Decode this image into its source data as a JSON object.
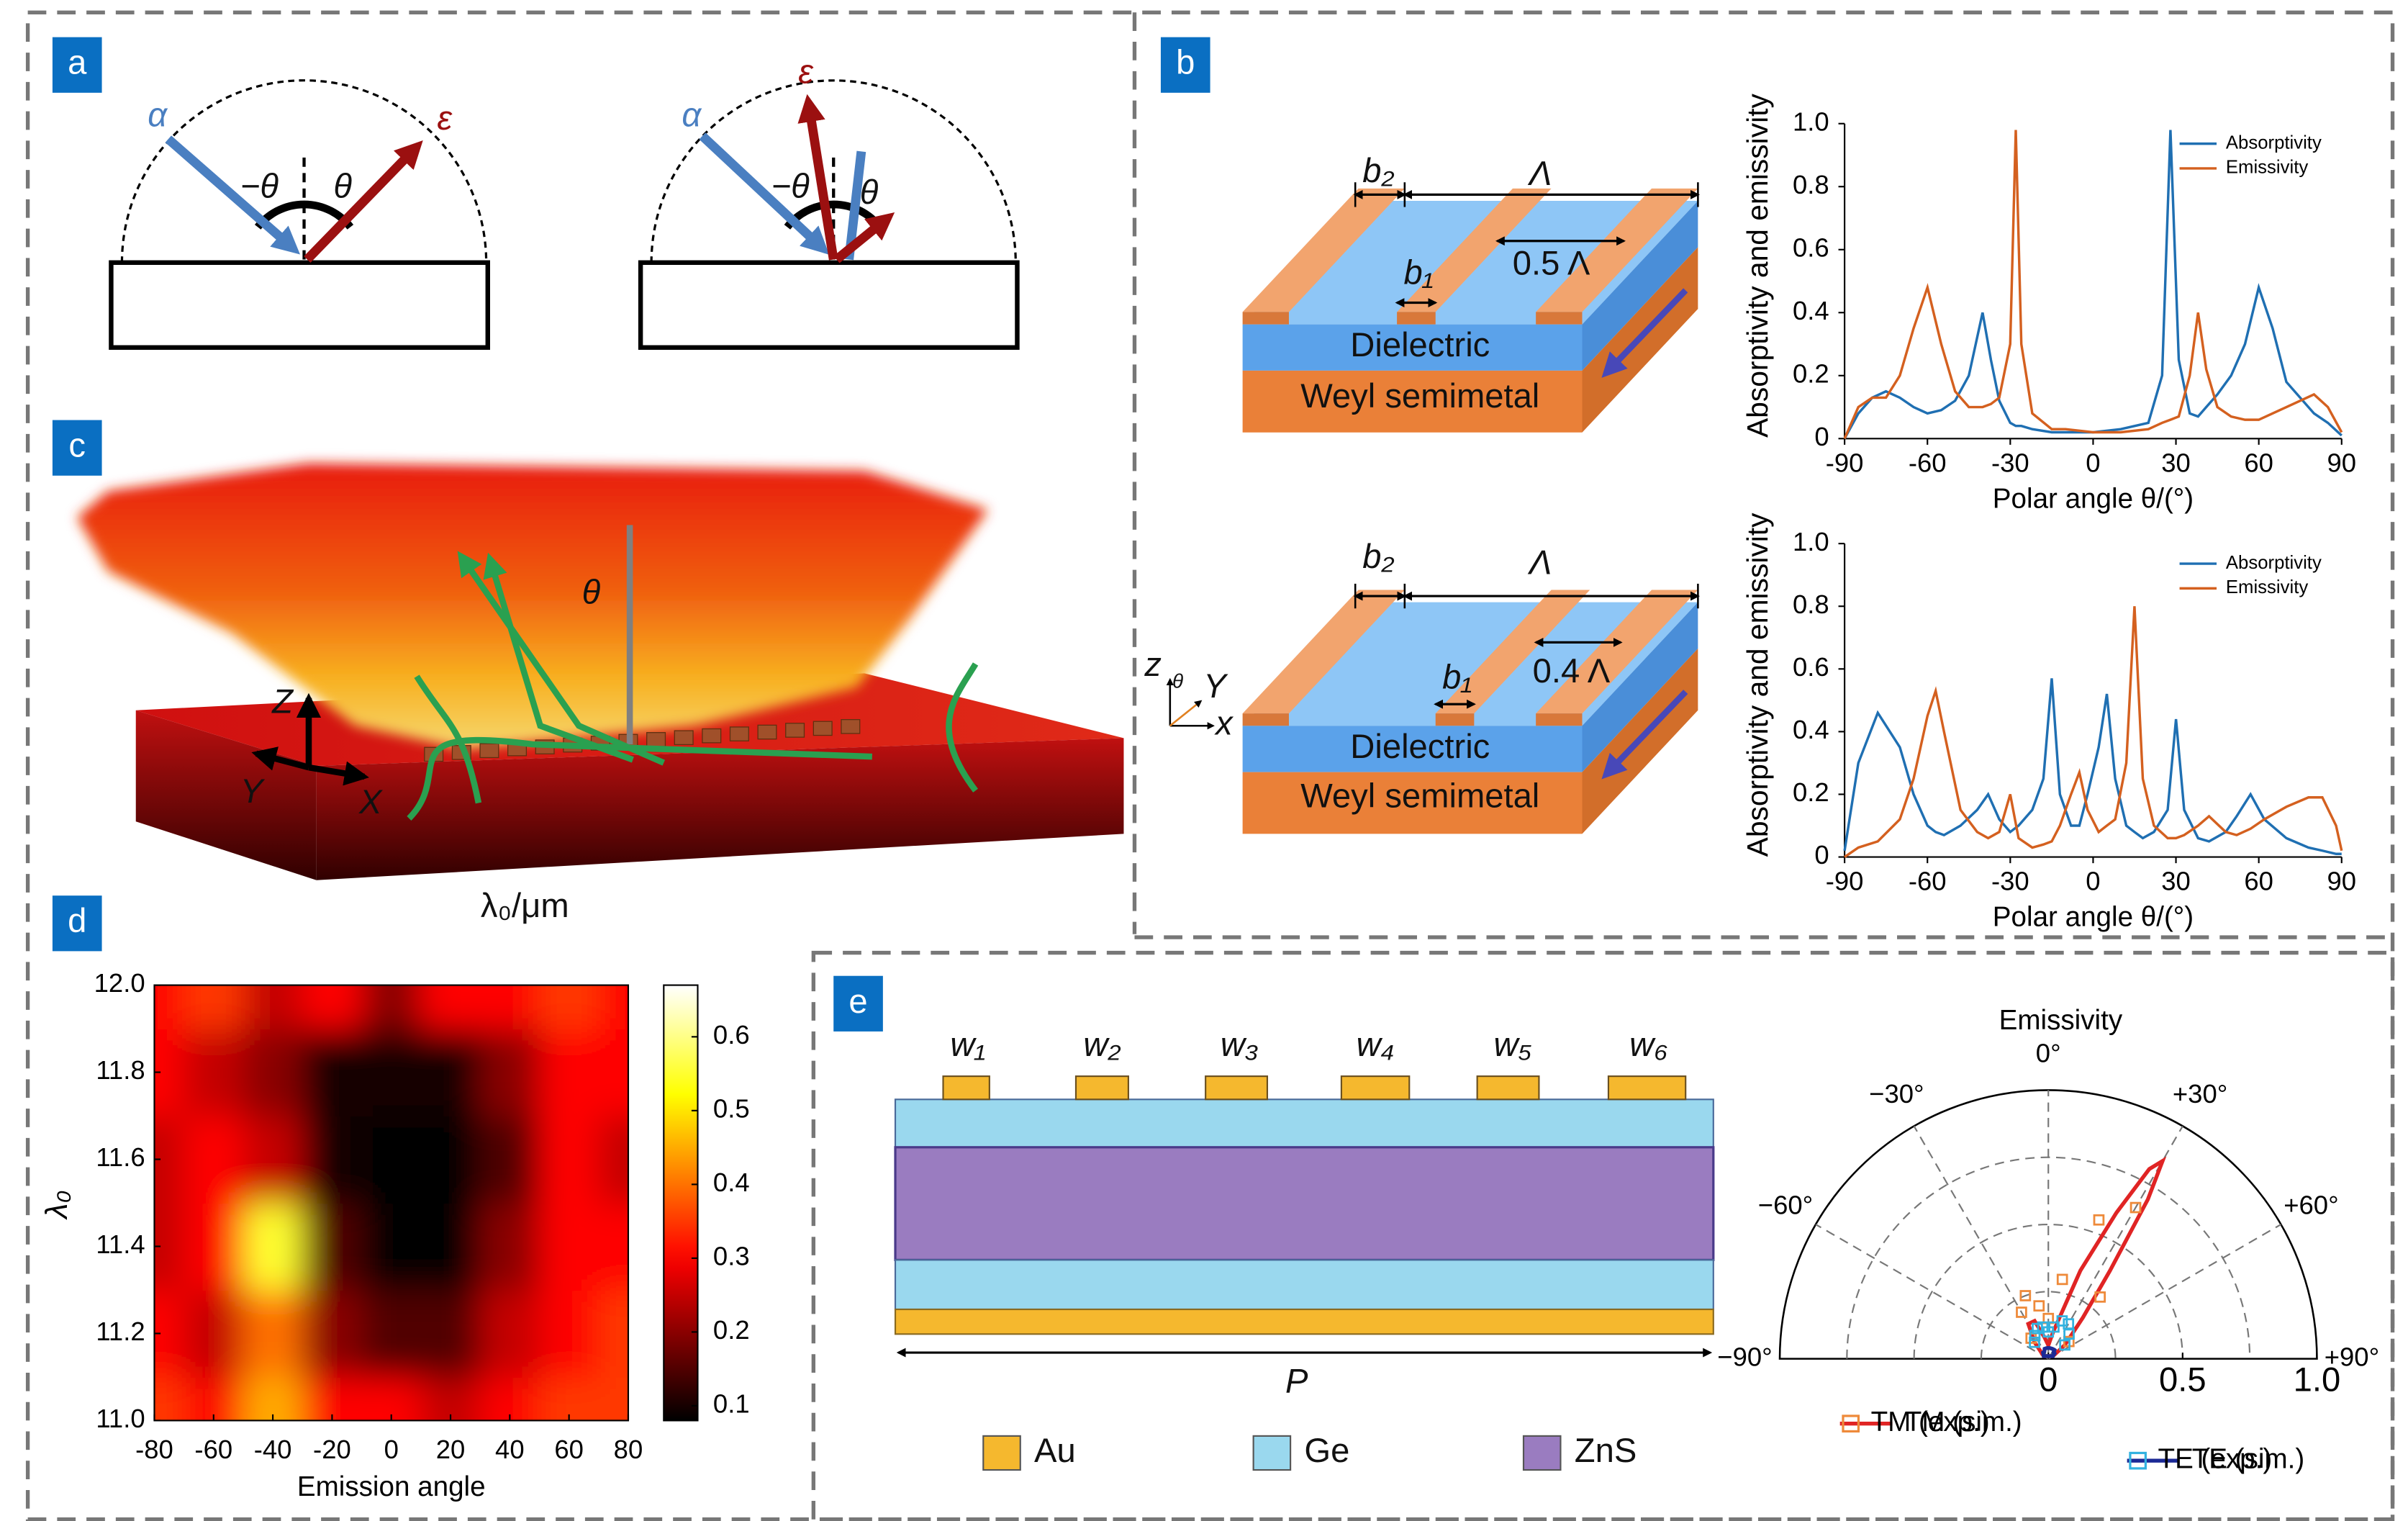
{
  "panels": {
    "a": {
      "label": "a",
      "left": {
        "incident": "α",
        "emitted": "ε",
        "neg_angle": "−θ",
        "angle": "θ"
      },
      "right": {
        "incident": "α",
        "emitted": "ε",
        "neg_angle": "−θ",
        "angle": "θ"
      }
    },
    "b": {
      "label": "b",
      "top": {
        "b2": "b₂",
        "period": "Λ",
        "b1": "b₁",
        "ratio": "0.5 Λ",
        "dielectric": "Dielectric",
        "substrate": "Weyl semimetal"
      },
      "bottom": {
        "b2": "b₂",
        "period": "Λ",
        "b1": "b₁",
        "ratio": "0.4 Λ",
        "dielectric": "Dielectric",
        "substrate": "Weyl semimetal"
      },
      "axes": {
        "z": "z",
        "theta": "θ",
        "y": "Y",
        "x": "x"
      }
    },
    "c": {
      "label": "c",
      "theta": "θ",
      "z": "Z",
      "y": "Y",
      "x": "X",
      "caption": "λ₀/μm"
    },
    "d": {
      "label": "d"
    },
    "e": {
      "label": "e",
      "widths": [
        "w₁",
        "w₂",
        "w₃",
        "w₄",
        "w₅",
        "w₆"
      ],
      "period": "P",
      "materials": [
        "Au",
        "Ge",
        "ZnS"
      ]
    }
  },
  "chart_data": [
    {
      "type": "line",
      "xlabel": "Polar angle θ/(°)",
      "ylabel": "Absorptivity and emissivity",
      "xlim": [
        -90,
        90
      ],
      "ylim": [
        0,
        1
      ],
      "xticks": [
        -90,
        -60,
        -30,
        0,
        30,
        60,
        90
      ],
      "yticks": [
        0,
        0.2,
        0.4,
        0.6,
        0.8,
        {
          "value": 1,
          "label": "1.0"
        }
      ],
      "legend": "upper right",
      "x": [
        -90,
        -85,
        -80,
        -75,
        -70,
        -65,
        -60,
        -55,
        -50,
        -45,
        -40,
        -37,
        -34,
        -30,
        -28,
        -26,
        -22,
        -15,
        -10,
        0,
        10,
        20,
        25,
        28,
        31,
        35,
        38,
        41,
        45,
        50,
        55,
        60,
        65,
        70,
        80,
        85,
        90
      ],
      "series": [
        {
          "name": "Absorptivity",
          "color": "#1f6fb2",
          "values": [
            0,
            0.08,
            0.13,
            0.15,
            0.13,
            0.1,
            0.08,
            0.09,
            0.12,
            0.2,
            0.4,
            0.25,
            0.12,
            0.05,
            0.04,
            0.04,
            0.03,
            0.02,
            0.02,
            0.02,
            0.03,
            0.05,
            0.2,
            0.98,
            0.25,
            0.08,
            0.07,
            0.1,
            0.14,
            0.2,
            0.3,
            0.48,
            0.35,
            0.18,
            0.08,
            0.05,
            0.01
          ]
        },
        {
          "name": "Emissivity",
          "color": "#d4601f",
          "values": [
            0,
            0.1,
            0.13,
            0.13,
            0.2,
            0.35,
            0.48,
            0.3,
            0.15,
            0.1,
            0.1,
            0.11,
            0.13,
            0.3,
            0.98,
            0.3,
            0.08,
            0.03,
            0.03,
            0.02,
            0.02,
            0.03,
            0.05,
            0.06,
            0.07,
            0.2,
            0.4,
            0.22,
            0.1,
            0.07,
            0.06,
            0.06,
            0.08,
            0.1,
            0.14,
            0.1,
            0.02
          ]
        }
      ]
    },
    {
      "type": "line",
      "xlabel": "Polar angle θ/(°)",
      "ylabel": "Absorptivity and emissivity",
      "xlim": [
        -90,
        90
      ],
      "ylim": [
        0,
        1
      ],
      "xticks": [
        -90,
        -60,
        -30,
        0,
        30,
        60,
        90
      ],
      "yticks": [
        0,
        0.2,
        0.4,
        0.6,
        0.8,
        {
          "value": 1,
          "label": "1.0"
        }
      ],
      "legend": "upper right",
      "x": [
        -90,
        -85,
        -78,
        -70,
        -65,
        -60,
        -57,
        -54,
        -48,
        -42,
        -38,
        -34,
        -30,
        -27,
        -22,
        -18,
        -15,
        -12,
        -8,
        -5,
        -2,
        2,
        5,
        8,
        12,
        15,
        18,
        22,
        27,
        30,
        33,
        38,
        42,
        48,
        52,
        57,
        62,
        70,
        78,
        83,
        88,
        90
      ],
      "series": [
        {
          "name": "Absorptivity",
          "color": "#1f6fb2",
          "values": [
            0.02,
            0.3,
            0.46,
            0.35,
            0.2,
            0.1,
            0.08,
            0.07,
            0.1,
            0.15,
            0.2,
            0.12,
            0.08,
            0.1,
            0.15,
            0.25,
            0.57,
            0.2,
            0.1,
            0.1,
            0.2,
            0.35,
            0.52,
            0.25,
            0.1,
            0.08,
            0.06,
            0.08,
            0.15,
            0.44,
            0.15,
            0.06,
            0.05,
            0.08,
            0.13,
            0.2,
            0.12,
            0.06,
            0.03,
            0.02,
            0.01,
            0.01
          ]
        },
        {
          "name": "Emissivity",
          "color": "#d4601f",
          "values": [
            0,
            0.03,
            0.05,
            0.12,
            0.25,
            0.45,
            0.53,
            0.4,
            0.15,
            0.08,
            0.06,
            0.08,
            0.2,
            0.06,
            0.03,
            0.04,
            0.05,
            0.1,
            0.2,
            0.27,
            0.15,
            0.08,
            0.1,
            0.12,
            0.3,
            0.8,
            0.25,
            0.1,
            0.06,
            0.06,
            0.07,
            0.1,
            0.13,
            0.08,
            0.07,
            0.09,
            0.12,
            0.16,
            0.19,
            0.19,
            0.1,
            0.02
          ]
        }
      ]
    },
    {
      "type": "heatmap",
      "xlabel": "Emission angle",
      "ylabel": "λ₀",
      "colormap": "hot",
      "xlim": [
        -80,
        80
      ],
      "ylim": [
        11,
        12
      ],
      "xticks": [
        -80,
        -60,
        -40,
        -20,
        0,
        20,
        40,
        60,
        80
      ],
      "yticks": [
        {
          "value": 11,
          "label": "11.0"
        },
        11.2,
        11.4,
        11.6,
        11.8,
        {
          "value": 12,
          "label": "12.0"
        }
      ],
      "clim": [
        0.08,
        0.67
      ],
      "cticks": [
        0.1,
        0.2,
        0.3,
        0.4,
        0.5,
        0.6
      ],
      "x": [
        -80,
        -60,
        -40,
        -20,
        0,
        20,
        40,
        60,
        80
      ],
      "y": [
        11,
        11.2,
        11.4,
        11.6,
        11.8,
        12
      ],
      "z": [
        [
          0.35,
          0.3,
          0.45,
          0.3,
          0.3,
          0.25,
          0.3,
          0.35,
          0.35
        ],
        [
          0.3,
          0.25,
          0.4,
          0.2,
          0.15,
          0.15,
          0.25,
          0.3,
          0.35
        ],
        [
          0.25,
          0.3,
          0.55,
          0.15,
          0.08,
          0.08,
          0.2,
          0.3,
          0.3
        ],
        [
          0.25,
          0.3,
          0.25,
          0.1,
          0.08,
          0.08,
          0.15,
          0.3,
          0.25
        ],
        [
          0.3,
          0.25,
          0.2,
          0.1,
          0.1,
          0.1,
          0.2,
          0.3,
          0.3
        ],
        [
          0.3,
          0.35,
          0.25,
          0.3,
          0.2,
          0.3,
          0.3,
          0.35,
          0.3
        ]
      ]
    },
    {
      "type": "polar",
      "title": "Emissivity",
      "rlim": [
        0,
        1
      ],
      "rticks": [
        0,
        0.5,
        {
          "value": 1,
          "label": "1.0"
        }
      ],
      "rgrid": [
        0.25,
        0.5,
        0.75
      ],
      "thetaticks": [
        {
          "value": -90,
          "label": "−90°"
        },
        {
          "value": -60,
          "label": "−60°"
        },
        {
          "value": -30,
          "label": "−30°"
        },
        {
          "value": 0,
          "label": "0°"
        },
        {
          "value": 30,
          "label": "+30°"
        },
        {
          "value": 60,
          "label": "+60°"
        },
        {
          "value": 90,
          "label": "+90°"
        }
      ],
      "series": [
        {
          "name": "TM (sim.)",
          "color": "#e02424",
          "marker": "line",
          "theta": [
            -60,
            -40,
            -30,
            -20,
            -10,
            0,
            10,
            20,
            25,
            28,
            30,
            32,
            35,
            40,
            50,
            60
          ],
          "values": [
            0.02,
            0.08,
            0.15,
            0.15,
            0.08,
            0.05,
            0.1,
            0.35,
            0.6,
            0.8,
            0.85,
            0.7,
            0.4,
            0.2,
            0.08,
            0.02
          ]
        },
        {
          "name": "TE (sim.)",
          "color": "#1c2a96",
          "marker": "line",
          "theta": [
            -60,
            -40,
            -30,
            -20,
            -10,
            0,
            10,
            20,
            25,
            28,
            30,
            32,
            35,
            40,
            50,
            60
          ],
          "values": [
            0.02,
            0.03,
            0.03,
            0.04,
            0.04,
            0.04,
            0.04,
            0.04,
            0.04,
            0.04,
            0.04,
            0.04,
            0.04,
            0.03,
            0.03,
            0.02
          ]
        },
        {
          "name": "TM (exp.)",
          "color": "#ee8a3a",
          "marker": "square",
          "theta": [
            -40,
            -30,
            -20,
            -10,
            0,
            10,
            20,
            30,
            40,
            50
          ],
          "values": [
            0.1,
            0.2,
            0.25,
            0.2,
            0.15,
            0.3,
            0.55,
            0.65,
            0.3,
            0.1
          ]
        },
        {
          "name": "TE (exp.)",
          "color": "#33b2e0",
          "marker": "square",
          "theta": [
            -40,
            -30,
            -20,
            -10,
            0,
            10,
            20,
            30,
            40,
            50
          ],
          "values": [
            0.08,
            0.1,
            0.12,
            0.12,
            0.1,
            0.12,
            0.15,
            0.15,
            0.12,
            0.08
          ]
        }
      ]
    }
  ]
}
